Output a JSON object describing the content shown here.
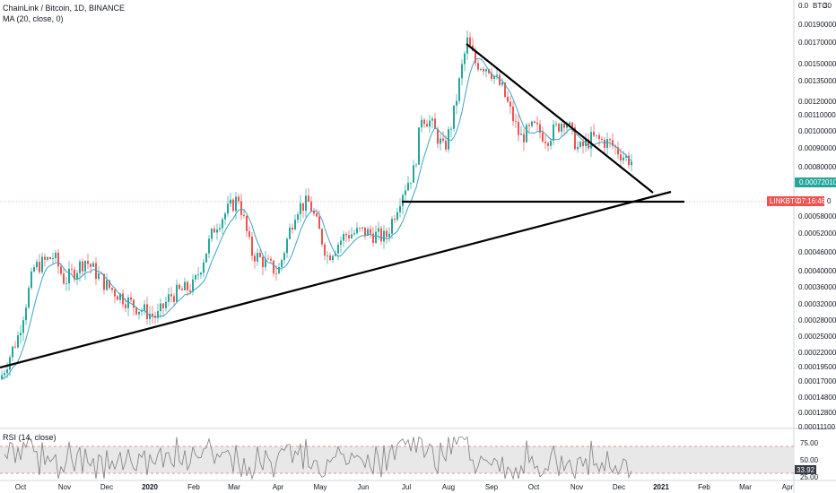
{
  "header": {
    "symbol_line": "ChainLink / Bitcoin, 1D, BINANCE",
    "ma_line": "MA (20, close, 0)",
    "rsi_line": "RSI (14, close)"
  },
  "colors": {
    "up": "#26a69a",
    "down": "#ef5350",
    "ma": "#3ba4c4",
    "badge_ma": "#26a69a",
    "badge_symbol": "#ef5350",
    "trendline": "#000000",
    "rsi_line": "#7e7e7e",
    "rsi_band": "#e8e8e8",
    "rsi_bound": "#e57373",
    "rsi_badge": "#363a45"
  },
  "price_axis": {
    "unit_label": "BTC",
    "top_label": "0.0",
    "top_label_right": "30",
    "labels": [
      "0.00190000",
      "0.00170000",
      "0.00150000",
      "0.00135000",
      "0.00120000",
      "0.00110000",
      "0.00100000",
      "0.00090000",
      "0.00080000",
      "0.00072010",
      "0.00058000",
      "0.00052000",
      "0.00046000",
      "0.00040000",
      "0.00036000",
      "0.00032000",
      "0.00028000",
      "0.00025000",
      "0.00022000",
      "0.00019500",
      "0.00017000",
      "0.00014800",
      "0.00012800",
      "0.00011100"
    ],
    "ma_badge": "0.00072010",
    "symbol_badge": "LINKBTC",
    "countdown": "07:16:46",
    "countdown_suffix": "0"
  },
  "rsi_axis": {
    "labels": [
      "75.00",
      "50.00",
      "25.00"
    ],
    "current": "33.92"
  },
  "time_axis": {
    "labels": [
      "Oct",
      "Nov",
      "Dec",
      "2020",
      "Feb",
      "Mar",
      "Apr",
      "May",
      "Jun",
      "Jul",
      "Aug",
      "Sep",
      "Oct",
      "Nov",
      "Dec",
      "2021",
      "Feb",
      "Mar",
      "Apr"
    ]
  },
  "chart_data": {
    "type": "candlestick",
    "price_scale": "log",
    "ylim": [
      0.000111,
      0.0019
    ],
    "indicators": [
      "MA (20, close, 0)",
      "RSI (14, close)"
    ],
    "monthly_close_approx": [
      {
        "month": "Oct",
        "close": 0.00021
      },
      {
        "month": "Nov",
        "close": 0.00036
      },
      {
        "month": "Dec",
        "close": 0.0003
      },
      {
        "month": "2020",
        "close": 0.00025
      },
      {
        "month": "Feb",
        "close": 0.0003
      },
      {
        "month": "Mar",
        "close": 0.00055
      },
      {
        "month": "Apr",
        "close": 0.00034
      },
      {
        "month": "May",
        "close": 0.00053
      },
      {
        "month": "Jun",
        "close": 0.00041
      },
      {
        "month": "Jul",
        "close": 0.00062
      },
      {
        "month": "Aug",
        "close": 0.00165
      },
      {
        "month": "Sep",
        "close": 0.00112
      },
      {
        "month": "Oct",
        "close": 0.00095
      },
      {
        "month": "Nov",
        "close": 0.00085
      },
      {
        "month": "Dec",
        "close": 0.0007
      }
    ],
    "last_close": 0.00072,
    "rsi_last": 33.92,
    "rsi_levels": [
      70,
      30
    ]
  }
}
